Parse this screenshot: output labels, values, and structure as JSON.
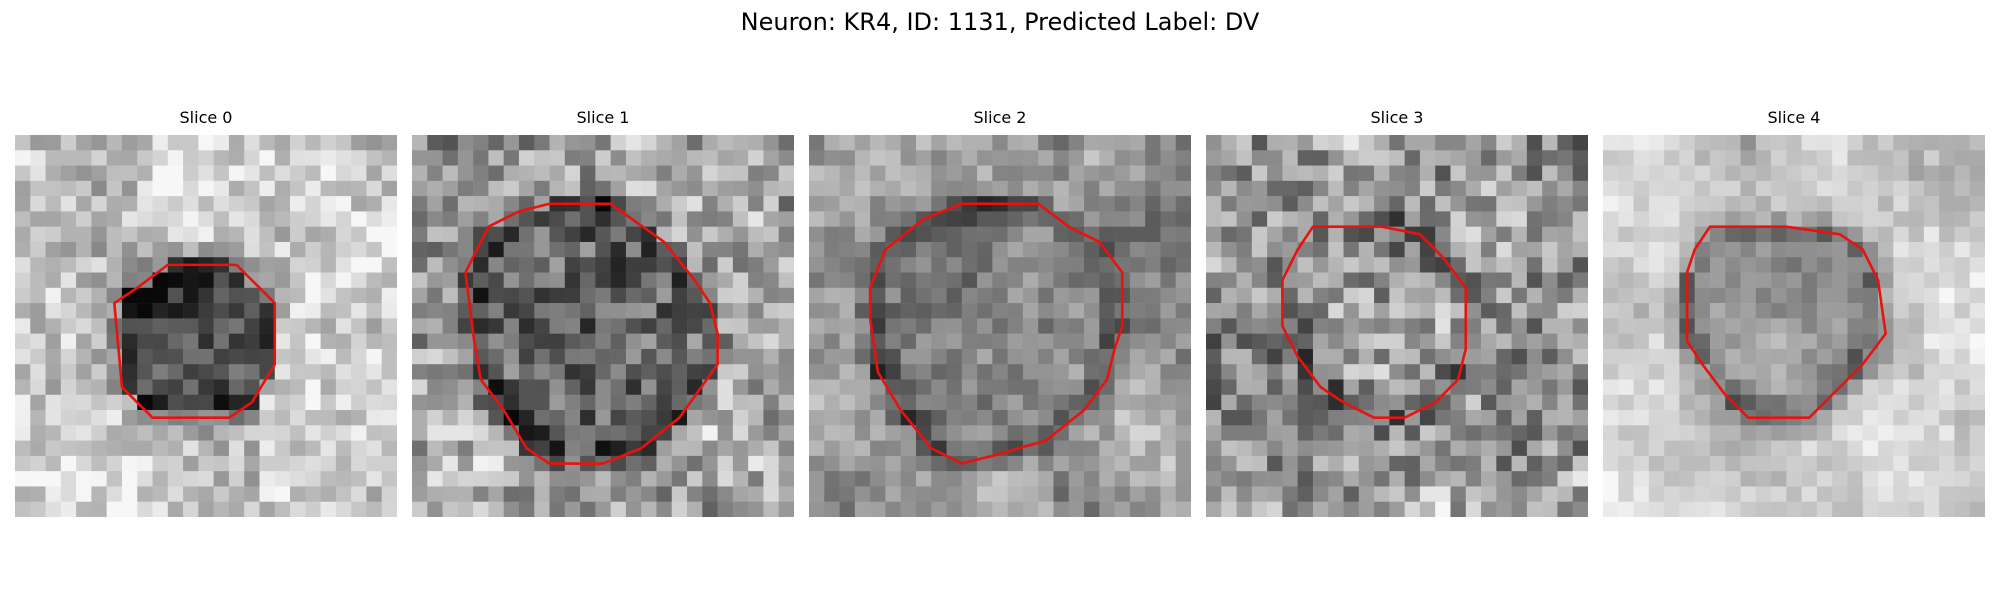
{
  "figure": {
    "title": "Neuron: KR4, ID: 1131, Predicted Label: DV",
    "contour_color": "#e8120f"
  },
  "panels": [
    {
      "title": "Slice 0",
      "image_description_icon": "grayscale-micrograph",
      "seed": 11,
      "background_level": 0.78,
      "center_level": 0.32,
      "noise": 0.16,
      "contour": [
        [
          10,
          8.5
        ],
        [
          14.5,
          8.5
        ],
        [
          17,
          11
        ],
        [
          17,
          15
        ],
        [
          15.5,
          17.5
        ],
        [
          14,
          18.5
        ],
        [
          11.5,
          18.5
        ],
        [
          9,
          18.5
        ],
        [
          7,
          16.5
        ],
        [
          6.5,
          11
        ],
        [
          8,
          10
        ]
      ]
    },
    {
      "title": "Slice 1",
      "image_description_icon": "grayscale-micrograph",
      "seed": 22,
      "background_level": 0.65,
      "center_level": 0.38,
      "noise": 0.22,
      "contour": [
        [
          9,
          4.5
        ],
        [
          13,
          4.5
        ],
        [
          16.5,
          7
        ],
        [
          18.5,
          9.5
        ],
        [
          19.5,
          11
        ],
        [
          20,
          13
        ],
        [
          20,
          15
        ],
        [
          17.5,
          18.5
        ],
        [
          15,
          20.5
        ],
        [
          12.5,
          21.5
        ],
        [
          9,
          21.5
        ],
        [
          7.5,
          20.5
        ],
        [
          6,
          18
        ],
        [
          4.5,
          16
        ],
        [
          4,
          13
        ],
        [
          3.5,
          9
        ],
        [
          5,
          6
        ],
        [
          7,
          5
        ]
      ]
    },
    {
      "title": "Slice 2",
      "image_description_icon": "grayscale-micrograph",
      "seed": 33,
      "background_level": 0.62,
      "center_level": 0.48,
      "noise": 0.12,
      "contour": [
        [
          10,
          4.5
        ],
        [
          15,
          4.5
        ],
        [
          17,
          6
        ],
        [
          19,
          7
        ],
        [
          20.5,
          9
        ],
        [
          20.5,
          12.5
        ],
        [
          20,
          14
        ],
        [
          19.5,
          16
        ],
        [
          18,
          18
        ],
        [
          15.5,
          20
        ],
        [
          12,
          21
        ],
        [
          10,
          21.5
        ],
        [
          8,
          20.5
        ],
        [
          6,
          18
        ],
        [
          4.5,
          15.5
        ],
        [
          4,
          12
        ],
        [
          4,
          10
        ],
        [
          5,
          7.5
        ],
        [
          7.5,
          5.5
        ]
      ]
    },
    {
      "title": "Slice 3",
      "image_description_icon": "grayscale-micrograph",
      "seed": 44,
      "background_level": 0.6,
      "center_level": 0.58,
      "noise": 0.24,
      "contour": [
        [
          7,
          6
        ],
        [
          11.5,
          6
        ],
        [
          14,
          6.5
        ],
        [
          15.5,
          8
        ],
        [
          17,
          10
        ],
        [
          17,
          14
        ],
        [
          16.5,
          16
        ],
        [
          15,
          17.5
        ],
        [
          13,
          18.5
        ],
        [
          11,
          18.5
        ],
        [
          9,
          17.5
        ],
        [
          7.5,
          16.5
        ],
        [
          6,
          14.5
        ],
        [
          5,
          12.5
        ],
        [
          5,
          9.5
        ],
        [
          6,
          7.5
        ]
      ]
    },
    {
      "title": "Slice 4",
      "image_description_icon": "grayscale-micrograph",
      "seed": 55,
      "background_level": 0.8,
      "center_level": 0.6,
      "noise": 0.08,
      "contour": [
        [
          7,
          6
        ],
        [
          12,
          6
        ],
        [
          15.5,
          6.5
        ],
        [
          17,
          7.5
        ],
        [
          18,
          9.5
        ],
        [
          18.5,
          13
        ],
        [
          17,
          15
        ],
        [
          15.5,
          16.5
        ],
        [
          13.5,
          18.5
        ],
        [
          11.5,
          18.5
        ],
        [
          9.5,
          18.5
        ],
        [
          8,
          17
        ],
        [
          6.5,
          15
        ],
        [
          5.5,
          13.5
        ],
        [
          5.5,
          9
        ],
        [
          6,
          7.5
        ]
      ]
    }
  ]
}
